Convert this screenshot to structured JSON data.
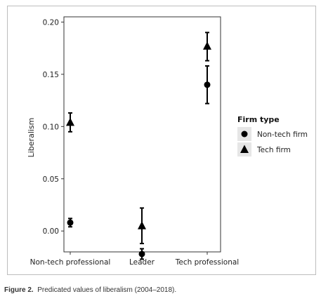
{
  "chart_data": {
    "type": "scatter",
    "ylabel": "Liberalism",
    "xlabel": "",
    "ylim": [
      -0.02,
      0.205
    ],
    "yticks": [
      0.0,
      0.05,
      0.1,
      0.15,
      0.2
    ],
    "ytick_labels": [
      "0.00",
      "0.05",
      "0.10",
      "0.15",
      "0.20"
    ],
    "categories": [
      "Non-tech professional",
      "Leader",
      "Tech professional"
    ],
    "legend": {
      "title": "Firm type",
      "placement": "right",
      "entries": [
        {
          "label": "Non-tech firm",
          "marker": "circle"
        },
        {
          "label": "Tech firm",
          "marker": "triangle"
        }
      ]
    },
    "series": [
      {
        "name": "Non-tech firm",
        "marker": "circle",
        "points": [
          {
            "category": "Non-tech professional",
            "y": 0.008,
            "lo": 0.004,
            "hi": 0.012
          },
          {
            "category": "Leader",
            "y": -0.022,
            "lo": -0.027,
            "hi": -0.017
          },
          {
            "category": "Tech professional",
            "y": 0.14,
            "lo": 0.122,
            "hi": 0.158
          }
        ]
      },
      {
        "name": "Tech firm",
        "marker": "triangle",
        "points": [
          {
            "category": "Non-tech professional",
            "y": 0.104,
            "lo": 0.095,
            "hi": 0.113
          },
          {
            "category": "Leader",
            "y": 0.005,
            "lo": -0.012,
            "hi": 0.022
          },
          {
            "category": "Tech professional",
            "y": 0.177,
            "lo": 0.163,
            "hi": 0.19
          }
        ]
      }
    ],
    "grid": false,
    "colors": {
      "marks": "#000000",
      "panel_border": "#333333",
      "frame": "#bdbdbd",
      "legend_key_bg": "#e6e6e6"
    }
  },
  "caption": {
    "label": "Figure 2.",
    "text": "Predicated values of liberalism (2004–2018)."
  }
}
